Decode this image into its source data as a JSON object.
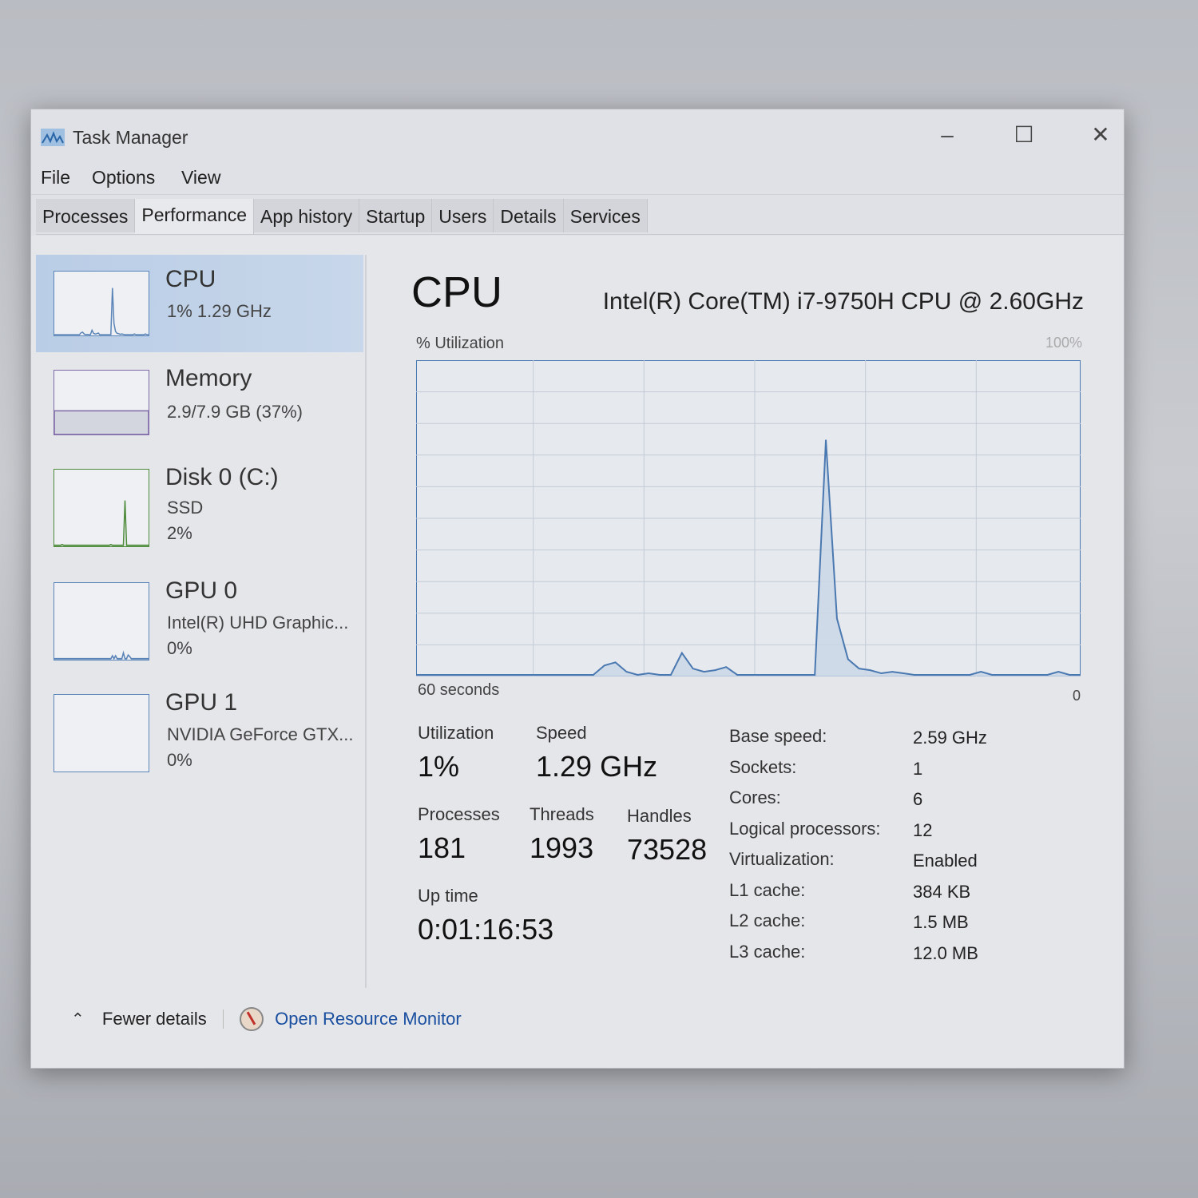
{
  "window": {
    "title": "Task Manager"
  },
  "menu": [
    "File",
    "Options",
    "View"
  ],
  "tabs": [
    "Processes",
    "Performance",
    "App history",
    "Startup",
    "Users",
    "Details",
    "Services"
  ],
  "active_tab": "Performance",
  "sidebar": [
    {
      "name": "CPU",
      "line1": "1% 1.29 GHz",
      "line2": "",
      "color": "#5b84b8",
      "spark": [
        0,
        0,
        0,
        0,
        0,
        0,
        0,
        0,
        0,
        0,
        0,
        0,
        0,
        0,
        0,
        0,
        0,
        3,
        4,
        1,
        0,
        0.5,
        0,
        0,
        7,
        2,
        1,
        1.5,
        2.5,
        0,
        0,
        0,
        0,
        0,
        0,
        0,
        0,
        75,
        18,
        5,
        2,
        1.5,
        0.5,
        1,
        0.5,
        0,
        0,
        0,
        0,
        0,
        0,
        1,
        0,
        0,
        0,
        0,
        0,
        0,
        1,
        0,
        0
      ]
    },
    {
      "name": "Memory",
      "line1": "2.9/7.9 GB (37%)",
      "line2": "",
      "color": "#7f6aa8",
      "fill_percent": 37
    },
    {
      "name": "Disk 0 (C:)",
      "line1": "SSD",
      "line2": "2%",
      "color": "#4d8a3a",
      "spark": [
        0,
        0,
        0,
        0,
        0,
        1,
        0,
        0,
        0,
        0,
        0,
        0,
        0,
        0,
        0,
        0,
        0,
        0,
        0,
        0,
        0,
        0,
        0,
        0,
        0,
        0,
        0,
        0,
        0,
        0,
        0,
        0,
        0,
        0,
        0,
        0,
        1,
        0,
        0,
        0,
        0,
        0,
        0,
        0,
        0,
        60,
        0,
        0,
        0,
        0,
        0,
        0,
        0,
        0,
        0,
        0,
        0,
        0,
        0,
        0,
        0
      ]
    },
    {
      "name": "GPU 0",
      "line1": "Intel(R) UHD Graphic...",
      "line2": "0%",
      "color": "#5b84b8",
      "spark": [
        0,
        0,
        0,
        0,
        0,
        0,
        0,
        0,
        0,
        0,
        0,
        0,
        0,
        0,
        0,
        0,
        0,
        0,
        0,
        0,
        0,
        0,
        0,
        0,
        0,
        0,
        0,
        0,
        0,
        0,
        0,
        0,
        0,
        0,
        0,
        0,
        0,
        4,
        0,
        4,
        0,
        0,
        0,
        0,
        8,
        0,
        0,
        5,
        3,
        0,
        0,
        0,
        0,
        0,
        0,
        0,
        0,
        0,
        0,
        0,
        0
      ]
    },
    {
      "name": "GPU 1",
      "line1": "NVIDIA GeForce GTX...",
      "line2": "0%",
      "color": "#5b84b8",
      "spark": []
    }
  ],
  "main": {
    "title": "CPU",
    "model": "Intel(R) Core(TM) i7-9750H CPU @ 2.60GHz",
    "stats": {
      "utilization_label": "Utilization",
      "utilization": "1%",
      "speed_label": "Speed",
      "speed": "1.29 GHz",
      "processes_label": "Processes",
      "processes": "181",
      "threads_label": "Threads",
      "threads": "1993",
      "handles_label": "Handles",
      "handles": "73528",
      "uptime_label": "Up time",
      "uptime": "0:01:16:53"
    },
    "specs": [
      {
        "label": "Base speed:",
        "value": "2.59 GHz"
      },
      {
        "label": "Sockets:",
        "value": "1"
      },
      {
        "label": "Cores:",
        "value": "6"
      },
      {
        "label": "Logical processors:",
        "value": "12"
      },
      {
        "label": "Virtualization:",
        "value": "Enabled"
      },
      {
        "label": "L1 cache:",
        "value": "384 KB"
      },
      {
        "label": "L2 cache:",
        "value": "1.5 MB"
      },
      {
        "label": "L3 cache:",
        "value": "12.0 MB"
      }
    ]
  },
  "chart_data": {
    "type": "area",
    "ylabel": "% Utilization",
    "ymax_label": "100%",
    "xlabel_left": "60 seconds",
    "xlabel_right": "0",
    "xlim": [
      60,
      0
    ],
    "ylim": [
      0,
      100
    ],
    "grid": true,
    "line_color": "#4a78b0",
    "fill_color": "#c9d6e6",
    "values": [
      0,
      0,
      0,
      0,
      0,
      0,
      0,
      0,
      0,
      0,
      0,
      0,
      0,
      0,
      0,
      0,
      0,
      3,
      4,
      1,
      0,
      0.5,
      0,
      0,
      7,
      2,
      1,
      1.5,
      2.5,
      0,
      0,
      0,
      0,
      0,
      0,
      0,
      0,
      75,
      18,
      5,
      2,
      1.5,
      0.5,
      1,
      0.5,
      0,
      0,
      0,
      0,
      0,
      0,
      1,
      0,
      0,
      0,
      0,
      0,
      0,
      1,
      0,
      0
    ]
  },
  "footer": {
    "fewer_details": "Fewer details",
    "resource_monitor": "Open Resource Monitor",
    "link_color": "#1a4fa0"
  }
}
